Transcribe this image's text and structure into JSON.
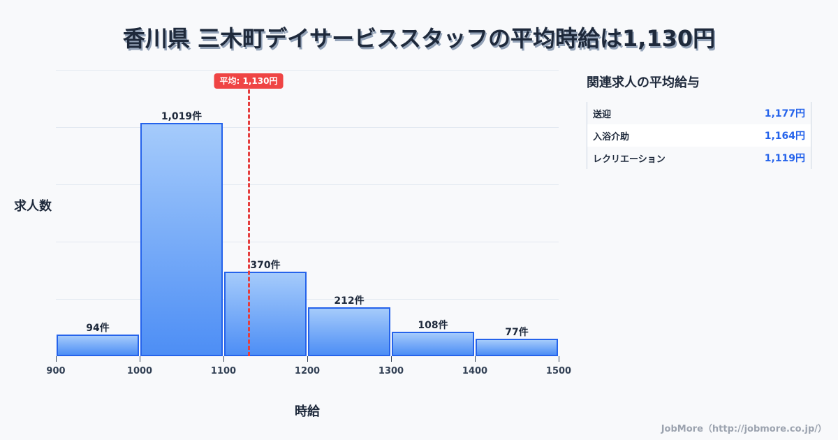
{
  "title": "香川県 三木町デイサービススタッフの平均時給は1,130円",
  "chart_data": {
    "type": "bar",
    "title": "香川県 三木町デイサービススタッフの平均時給は1,130円",
    "xlabel": "時給",
    "ylabel": "求人数",
    "categories": [
      "900-1000",
      "1000-1100",
      "1100-1200",
      "1200-1300",
      "1300-1400",
      "1400-1500"
    ],
    "bin_edges": [
      900,
      1000,
      1100,
      1200,
      1300,
      1400,
      1500
    ],
    "values": [
      94,
      1019,
      370,
      212,
      108,
      77
    ],
    "value_labels": [
      "94件",
      "1,019件",
      "370件",
      "212件",
      "108件",
      "77件"
    ],
    "x_ticks": [
      "900",
      "1000",
      "1100",
      "1200",
      "1300",
      "1400",
      "1500"
    ],
    "xlim": [
      900,
      1500
    ],
    "ylim": [
      0,
      1250
    ],
    "grid": true,
    "mean": 1130,
    "mean_label": "平均: 1,130円",
    "colors": {
      "bar_fill_top": "#a5cbfb",
      "bar_fill_bottom": "#4d8ef5",
      "bar_border": "#2563eb",
      "mean_line": "#e53e3e"
    }
  },
  "side_panel": {
    "title": "関連求人の平均給与",
    "items": [
      {
        "name": "送迎",
        "value": "1,177円"
      },
      {
        "name": "入浴介助",
        "value": "1,164円"
      },
      {
        "name": "レクリエーション",
        "value": "1,119円"
      }
    ]
  },
  "footer": "JobMore（http://jobmore.co.jp/）"
}
